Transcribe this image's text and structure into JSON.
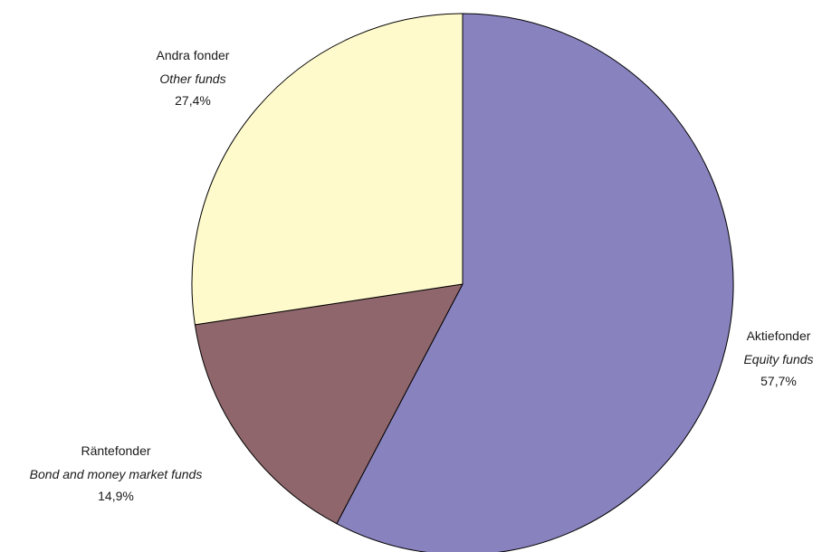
{
  "chart_data": {
    "type": "pie",
    "title": "",
    "slices": [
      {
        "sv": "Aktiefonder",
        "en": "Equity funds",
        "value": 57.7,
        "display": "57,7%",
        "color": "#8882BE"
      },
      {
        "sv": "Räntefonder",
        "en": "Bond and money market funds",
        "value": 14.9,
        "display": "14,9%",
        "color": "#8F666B"
      },
      {
        "sv": "Andra fonder",
        "en": "Other funds",
        "value": 27.4,
        "display": "27,4%",
        "color": "#FFFACC"
      }
    ],
    "start": "12 o'clock",
    "direction": "clockwise",
    "legend": "none (labels beside slices)"
  }
}
